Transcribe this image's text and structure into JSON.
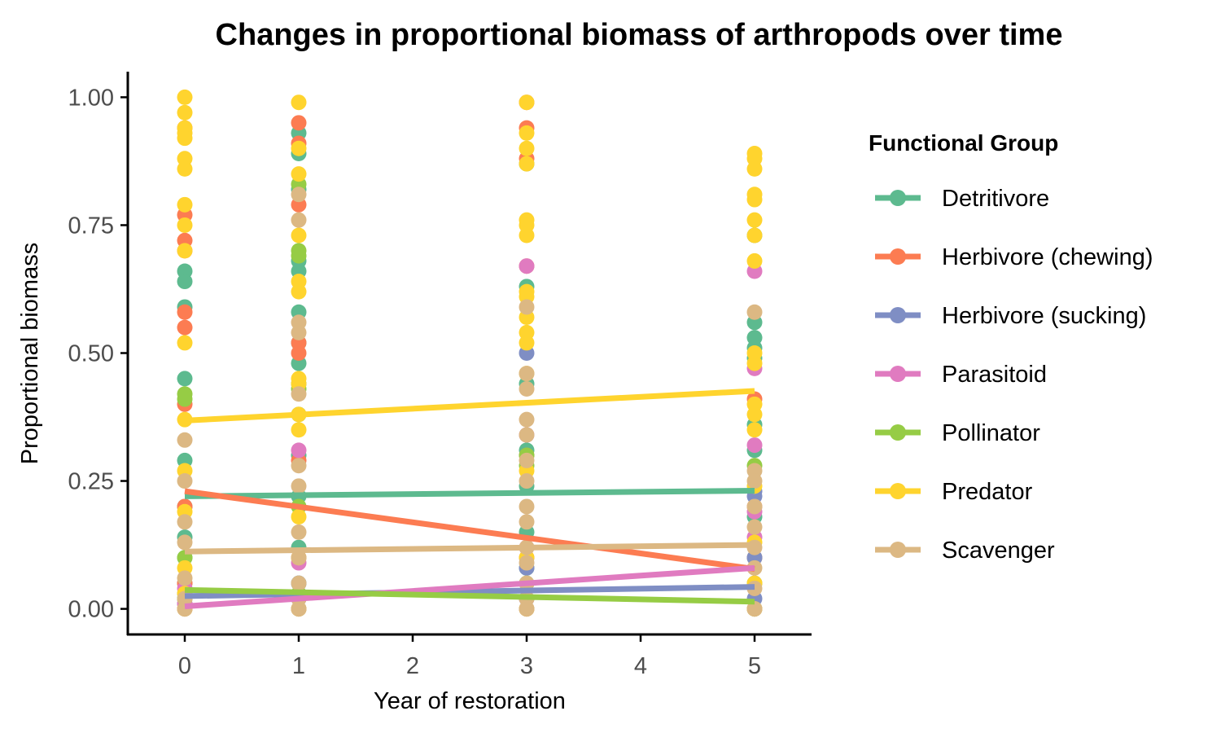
{
  "chart_data": {
    "type": "scatter",
    "title": "Changes in proportional biomass of arthropods over time",
    "xlabel": "Year of restoration",
    "ylabel": "Proportional biomass",
    "xlim": [
      -0.5,
      5.5
    ],
    "ylim": [
      -0.05,
      1.05
    ],
    "x_ticks": [
      0,
      1,
      2,
      3,
      4,
      5
    ],
    "y_ticks": [
      0.0,
      0.25,
      0.5,
      0.75,
      1.0
    ],
    "y_tick_labels": [
      "0.00",
      "0.25",
      "0.50",
      "0.75",
      "1.00"
    ],
    "grid": false,
    "legend_position": "right",
    "legend_title": "Functional Group",
    "series": [
      {
        "name": "Detritivore",
        "color": "#5dba8f",
        "trend": [
          [
            0,
            0.22
          ],
          [
            5,
            0.231
          ]
        ],
        "points": [
          [
            0,
            0.66
          ],
          [
            0,
            0.64
          ],
          [
            0,
            0.59
          ],
          [
            0,
            0.45
          ],
          [
            0,
            0.29
          ],
          [
            0,
            0.2
          ],
          [
            0,
            0.14
          ],
          [
            0,
            0.1
          ],
          [
            0,
            0.05
          ],
          [
            0,
            0.02
          ],
          [
            0,
            0.0
          ],
          [
            1,
            0.93
          ],
          [
            1,
            0.89
          ],
          [
            1,
            0.82
          ],
          [
            1,
            0.68
          ],
          [
            1,
            0.66
          ],
          [
            1,
            0.58
          ],
          [
            1,
            0.52
          ],
          [
            1,
            0.48
          ],
          [
            1,
            0.44
          ],
          [
            1,
            0.38
          ],
          [
            1,
            0.3
          ],
          [
            1,
            0.22
          ],
          [
            1,
            0.12
          ],
          [
            1,
            0.05
          ],
          [
            1,
            0.0
          ],
          [
            3,
            0.87
          ],
          [
            3,
            0.63
          ],
          [
            3,
            0.44
          ],
          [
            3,
            0.31
          ],
          [
            3,
            0.24
          ],
          [
            3,
            0.15
          ],
          [
            3,
            0.08
          ],
          [
            3,
            0.0
          ],
          [
            5,
            0.73
          ],
          [
            5,
            0.56
          ],
          [
            5,
            0.53
          ],
          [
            5,
            0.51
          ],
          [
            5,
            0.49
          ],
          [
            5,
            0.36
          ],
          [
            5,
            0.31
          ],
          [
            5,
            0.18
          ],
          [
            5,
            0.1
          ],
          [
            5,
            0.0
          ]
        ]
      },
      {
        "name": "Herbivore (chewing)",
        "color": "#fc7c52",
        "trend": [
          [
            0,
            0.23
          ],
          [
            5,
            0.078
          ]
        ],
        "points": [
          [
            0,
            0.94
          ],
          [
            0,
            0.77
          ],
          [
            0,
            0.72
          ],
          [
            0,
            0.7
          ],
          [
            0,
            0.58
          ],
          [
            0,
            0.55
          ],
          [
            0,
            0.4
          ],
          [
            0,
            0.2
          ],
          [
            0,
            0.05
          ],
          [
            0,
            0.0
          ],
          [
            1,
            0.95
          ],
          [
            1,
            0.91
          ],
          [
            1,
            0.79
          ],
          [
            1,
            0.52
          ],
          [
            1,
            0.5
          ],
          [
            1,
            0.29
          ],
          [
            1,
            0.1
          ],
          [
            1,
            0.0
          ],
          [
            3,
            0.99
          ],
          [
            3,
            0.94
          ],
          [
            3,
            0.88
          ],
          [
            3,
            0.67
          ],
          [
            3,
            0.3
          ],
          [
            3,
            0.1
          ],
          [
            3,
            0.0
          ],
          [
            5,
            0.41
          ],
          [
            5,
            0.2
          ],
          [
            5,
            0.1
          ],
          [
            5,
            0.0
          ]
        ]
      },
      {
        "name": "Herbivore (sucking)",
        "color": "#7f8ec4",
        "trend": [
          [
            0,
            0.025
          ],
          [
            5,
            0.043
          ]
        ],
        "points": [
          [
            0,
            0.03
          ],
          [
            0,
            0.01
          ],
          [
            1,
            0.05
          ],
          [
            1,
            0.02
          ],
          [
            3,
            0.5
          ],
          [
            3,
            0.08
          ],
          [
            3,
            0.02
          ],
          [
            5,
            0.23
          ],
          [
            5,
            0.22
          ],
          [
            5,
            0.1
          ],
          [
            5,
            0.02
          ]
        ]
      },
      {
        "name": "Parasitoid",
        "color": "#e07bc0",
        "trend": [
          [
            0,
            0.005
          ],
          [
            5,
            0.08
          ]
        ],
        "points": [
          [
            0,
            0.04
          ],
          [
            0,
            0.01
          ],
          [
            1,
            0.31
          ],
          [
            1,
            0.09
          ],
          [
            1,
            0.02
          ],
          [
            3,
            0.67
          ],
          [
            3,
            0.34
          ],
          [
            3,
            0.12
          ],
          [
            3,
            0.02
          ],
          [
            5,
            0.66
          ],
          [
            5,
            0.47
          ],
          [
            5,
            0.32
          ],
          [
            5,
            0.19
          ],
          [
            5,
            0.14
          ],
          [
            5,
            0.05
          ],
          [
            5,
            0.0
          ]
        ]
      },
      {
        "name": "Pollinator",
        "color": "#96cc45",
        "trend": [
          [
            0,
            0.037
          ],
          [
            5,
            0.014
          ]
        ],
        "points": [
          [
            0,
            0.42
          ],
          [
            0,
            0.41
          ],
          [
            0,
            0.1
          ],
          [
            0,
            0.02
          ],
          [
            1,
            0.83
          ],
          [
            1,
            0.7
          ],
          [
            1,
            0.69
          ],
          [
            1,
            0.43
          ],
          [
            1,
            0.2
          ],
          [
            1,
            0.03
          ],
          [
            3,
            0.3
          ],
          [
            3,
            0.28
          ],
          [
            3,
            0.05
          ],
          [
            5,
            0.28
          ],
          [
            5,
            0.05
          ],
          [
            5,
            0.0
          ]
        ]
      },
      {
        "name": "Predator",
        "color": "#ffd42e",
        "trend": [
          [
            0,
            0.368
          ],
          [
            5,
            0.426
          ]
        ],
        "points": [
          [
            0,
            1.0
          ],
          [
            0,
            0.97
          ],
          [
            0,
            0.94
          ],
          [
            0,
            0.93
          ],
          [
            0,
            0.92
          ],
          [
            0,
            0.88
          ],
          [
            0,
            0.86
          ],
          [
            0,
            0.79
          ],
          [
            0,
            0.75
          ],
          [
            0,
            0.7
          ],
          [
            0,
            0.52
          ],
          [
            0,
            0.37
          ],
          [
            0,
            0.27
          ],
          [
            0,
            0.19
          ],
          [
            0,
            0.08
          ],
          [
            0,
            0.03
          ],
          [
            0,
            0.0
          ],
          [
            1,
            0.99
          ],
          [
            1,
            0.9
          ],
          [
            1,
            0.85
          ],
          [
            1,
            0.73
          ],
          [
            1,
            0.64
          ],
          [
            1,
            0.62
          ],
          [
            1,
            0.45
          ],
          [
            1,
            0.44
          ],
          [
            1,
            0.38
          ],
          [
            1,
            0.35
          ],
          [
            1,
            0.18
          ],
          [
            1,
            0.1
          ],
          [
            1,
            0.0
          ],
          [
            3,
            0.99
          ],
          [
            3,
            0.93
          ],
          [
            3,
            0.9
          ],
          [
            3,
            0.87
          ],
          [
            3,
            0.76
          ],
          [
            3,
            0.75
          ],
          [
            3,
            0.73
          ],
          [
            3,
            0.62
          ],
          [
            3,
            0.61
          ],
          [
            3,
            0.57
          ],
          [
            3,
            0.54
          ],
          [
            3,
            0.52
          ],
          [
            3,
            0.46
          ],
          [
            3,
            0.27
          ],
          [
            3,
            0.1
          ],
          [
            3,
            0.0
          ],
          [
            5,
            0.89
          ],
          [
            5,
            0.88
          ],
          [
            5,
            0.86
          ],
          [
            5,
            0.81
          ],
          [
            5,
            0.8
          ],
          [
            5,
            0.76
          ],
          [
            5,
            0.73
          ],
          [
            5,
            0.68
          ],
          [
            5,
            0.5
          ],
          [
            5,
            0.48
          ],
          [
            5,
            0.4
          ],
          [
            5,
            0.38
          ],
          [
            5,
            0.35
          ],
          [
            5,
            0.24
          ],
          [
            5,
            0.13
          ],
          [
            5,
            0.05
          ],
          [
            5,
            0.0
          ]
        ]
      },
      {
        "name": "Scavenger",
        "color": "#dcb883",
        "trend": [
          [
            0,
            0.112
          ],
          [
            5,
            0.125
          ]
        ],
        "points": [
          [
            0,
            0.33
          ],
          [
            0,
            0.25
          ],
          [
            0,
            0.17
          ],
          [
            0,
            0.13
          ],
          [
            0,
            0.06
          ],
          [
            0,
            0.02
          ],
          [
            0,
            0.0
          ],
          [
            1,
            0.81
          ],
          [
            1,
            0.76
          ],
          [
            1,
            0.56
          ],
          [
            1,
            0.54
          ],
          [
            1,
            0.42
          ],
          [
            1,
            0.28
          ],
          [
            1,
            0.24
          ],
          [
            1,
            0.15
          ],
          [
            1,
            0.1
          ],
          [
            1,
            0.05
          ],
          [
            1,
            0.02
          ],
          [
            1,
            0.0
          ],
          [
            3,
            0.59
          ],
          [
            3,
            0.46
          ],
          [
            3,
            0.43
          ],
          [
            3,
            0.37
          ],
          [
            3,
            0.34
          ],
          [
            3,
            0.29
          ],
          [
            3,
            0.25
          ],
          [
            3,
            0.2
          ],
          [
            3,
            0.17
          ],
          [
            3,
            0.12
          ],
          [
            3,
            0.09
          ],
          [
            3,
            0.05
          ],
          [
            3,
            0.02
          ],
          [
            3,
            0.0
          ],
          [
            5,
            0.58
          ],
          [
            5,
            0.27
          ],
          [
            5,
            0.25
          ],
          [
            5,
            0.2
          ],
          [
            5,
            0.16
          ],
          [
            5,
            0.12
          ],
          [
            5,
            0.08
          ],
          [
            5,
            0.04
          ],
          [
            5,
            0.0
          ]
        ]
      }
    ]
  }
}
